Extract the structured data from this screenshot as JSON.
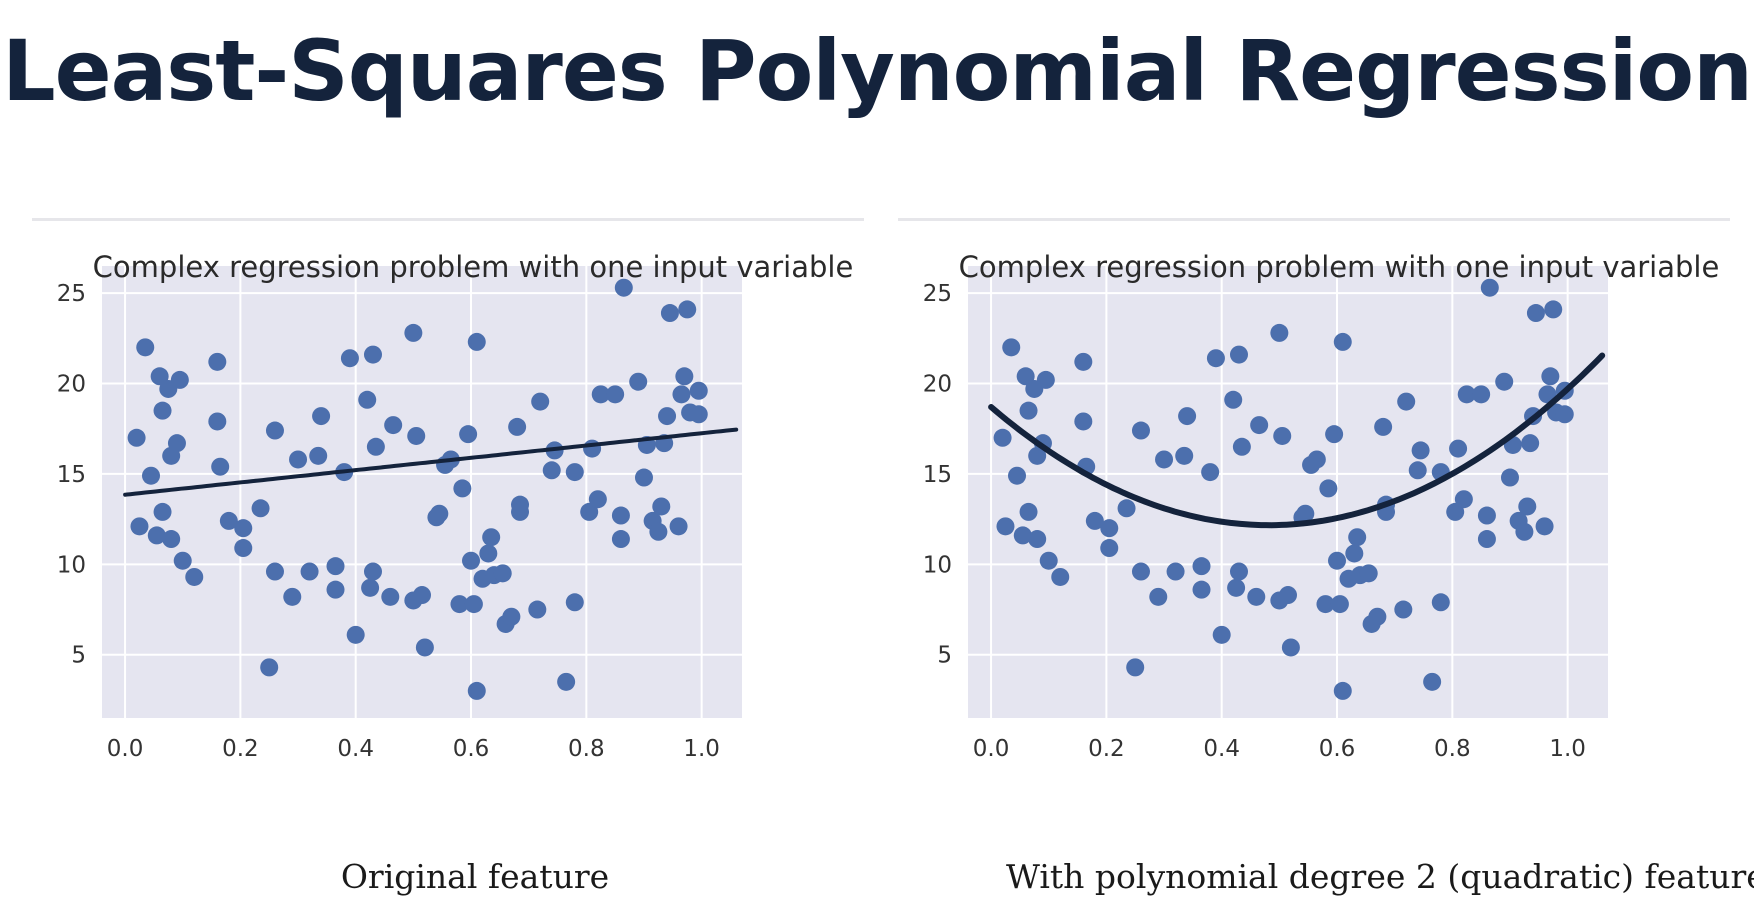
{
  "page": {
    "title": "Least-Squares Polynomial Regression"
  },
  "chart_data": [
    {
      "type": "scatter",
      "title": "Complex regression problem with one input variable",
      "xlabel": "Original feature",
      "ylabel": "",
      "xlim": [
        -0.04,
        1.07
      ],
      "ylim": [
        1.5,
        26.5
      ],
      "xticks": [
        0.0,
        0.2,
        0.4,
        0.6,
        0.8,
        1.0
      ],
      "xtick_labels": [
        "0.0",
        "0.2",
        "0.4",
        "0.6",
        "0.8",
        "1.0"
      ],
      "yticks": [
        5,
        10,
        15,
        20,
        25
      ],
      "ytick_labels": [
        "5",
        "10",
        "15",
        "20",
        "25"
      ],
      "grid": true,
      "background": "#e5e5f0",
      "point_color": "#4c6fad",
      "line_color": "#14233c",
      "fit": {
        "degree": 1,
        "coef": [
          13.85,
          3.4
        ]
      },
      "points": [
        [
          0.02,
          17
        ],
        [
          0.025,
          12.1
        ],
        [
          0.035,
          22
        ],
        [
          0.045,
          14.9
        ],
        [
          0.055,
          11.6
        ],
        [
          0.06,
          20.4
        ],
        [
          0.065,
          18.5
        ],
        [
          0.065,
          12.9
        ],
        [
          0.075,
          19.7
        ],
        [
          0.08,
          11.4
        ],
        [
          0.08,
          16
        ],
        [
          0.09,
          16.7
        ],
        [
          0.095,
          20.2
        ],
        [
          0.1,
          10.2
        ],
        [
          0.12,
          9.3
        ],
        [
          0.16,
          21.2
        ],
        [
          0.16,
          17.9
        ],
        [
          0.165,
          15.4
        ],
        [
          0.18,
          12.4
        ],
        [
          0.205,
          12
        ],
        [
          0.205,
          10.9
        ],
        [
          0.235,
          13.1
        ],
        [
          0.25,
          4.3
        ],
        [
          0.26,
          9.6
        ],
        [
          0.26,
          17.4
        ],
        [
          0.29,
          8.2
        ],
        [
          0.3,
          15.8
        ],
        [
          0.32,
          9.6
        ],
        [
          0.335,
          16
        ],
        [
          0.34,
          18.2
        ],
        [
          0.365,
          9.9
        ],
        [
          0.365,
          8.6
        ],
        [
          0.38,
          15.1
        ],
        [
          0.39,
          21.4
        ],
        [
          0.4,
          6.1
        ],
        [
          0.42,
          19.1
        ],
        [
          0.425,
          8.7
        ],
        [
          0.43,
          9.6
        ],
        [
          0.43,
          21.6
        ],
        [
          0.435,
          16.5
        ],
        [
          0.46,
          8.2
        ],
        [
          0.465,
          17.7
        ],
        [
          0.5,
          22.8
        ],
        [
          0.5,
          8
        ],
        [
          0.505,
          17.1
        ],
        [
          0.515,
          8.3
        ],
        [
          0.52,
          5.4
        ],
        [
          0.54,
          12.6
        ],
        [
          0.545,
          12.8
        ],
        [
          0.555,
          15.5
        ],
        [
          0.565,
          15.8
        ],
        [
          0.58,
          7.8
        ],
        [
          0.585,
          14.2
        ],
        [
          0.595,
          17.2
        ],
        [
          0.6,
          10.2
        ],
        [
          0.605,
          7.8
        ],
        [
          0.61,
          3
        ],
        [
          0.61,
          22.3
        ],
        [
          0.62,
          9.2
        ],
        [
          0.63,
          10.6
        ],
        [
          0.635,
          11.5
        ],
        [
          0.64,
          9.4
        ],
        [
          0.655,
          9.5
        ],
        [
          0.66,
          6.7
        ],
        [
          0.67,
          7.1
        ],
        [
          0.68,
          17.6
        ],
        [
          0.685,
          13.3
        ],
        [
          0.685,
          12.9
        ],
        [
          0.715,
          7.5
        ],
        [
          0.72,
          19
        ],
        [
          0.74,
          15.2
        ],
        [
          0.745,
          16.3
        ],
        [
          0.765,
          3.5
        ],
        [
          0.78,
          15.1
        ],
        [
          0.78,
          7.9
        ],
        [
          0.805,
          12.9
        ],
        [
          0.81,
          16.4
        ],
        [
          0.82,
          13.6
        ],
        [
          0.825,
          19.4
        ],
        [
          0.85,
          19.4
        ],
        [
          0.86,
          11.4
        ],
        [
          0.86,
          12.7
        ],
        [
          0.865,
          25.3
        ],
        [
          0.89,
          20.1
        ],
        [
          0.9,
          14.8
        ],
        [
          0.905,
          16.6
        ],
        [
          0.915,
          12.4
        ],
        [
          0.925,
          11.8
        ],
        [
          0.93,
          13.2
        ],
        [
          0.935,
          16.7
        ],
        [
          0.94,
          18.2
        ],
        [
          0.945,
          23.9
        ],
        [
          0.96,
          12.1
        ],
        [
          0.965,
          19.4
        ],
        [
          0.97,
          20.4
        ],
        [
          0.975,
          24.1
        ],
        [
          0.98,
          18.4
        ],
        [
          0.995,
          18.3
        ],
        [
          0.995,
          19.6
        ]
      ]
    },
    {
      "type": "scatter",
      "title": "Complex regression problem with one input variable",
      "xlabel": "With polynomial degree 2 (quadratic) feature",
      "ylabel": "",
      "xlim": [
        -0.04,
        1.07
      ],
      "ylim": [
        1.5,
        26.5
      ],
      "xticks": [
        0.0,
        0.2,
        0.4,
        0.6,
        0.8,
        1.0
      ],
      "xtick_labels": [
        "0.0",
        "0.2",
        "0.4",
        "0.6",
        "0.8",
        "1.0"
      ],
      "yticks": [
        5,
        10,
        15,
        20,
        25
      ],
      "ytick_labels": [
        "5",
        "10",
        "15",
        "20",
        "25"
      ],
      "grid": true,
      "background": "#e5e5f0",
      "point_color": "#4c6fad",
      "line_color": "#14233c",
      "fit": {
        "degree": 2,
        "coef": [
          18.7,
          -27.1,
          28.1
        ]
      },
      "points": [
        [
          0.02,
          17
        ],
        [
          0.025,
          12.1
        ],
        [
          0.035,
          22
        ],
        [
          0.045,
          14.9
        ],
        [
          0.055,
          11.6
        ],
        [
          0.06,
          20.4
        ],
        [
          0.065,
          18.5
        ],
        [
          0.065,
          12.9
        ],
        [
          0.075,
          19.7
        ],
        [
          0.08,
          11.4
        ],
        [
          0.08,
          16
        ],
        [
          0.09,
          16.7
        ],
        [
          0.095,
          20.2
        ],
        [
          0.1,
          10.2
        ],
        [
          0.12,
          9.3
        ],
        [
          0.16,
          21.2
        ],
        [
          0.16,
          17.9
        ],
        [
          0.165,
          15.4
        ],
        [
          0.18,
          12.4
        ],
        [
          0.205,
          12
        ],
        [
          0.205,
          10.9
        ],
        [
          0.235,
          13.1
        ],
        [
          0.25,
          4.3
        ],
        [
          0.26,
          9.6
        ],
        [
          0.26,
          17.4
        ],
        [
          0.29,
          8.2
        ],
        [
          0.3,
          15.8
        ],
        [
          0.32,
          9.6
        ],
        [
          0.335,
          16
        ],
        [
          0.34,
          18.2
        ],
        [
          0.365,
          9.9
        ],
        [
          0.365,
          8.6
        ],
        [
          0.38,
          15.1
        ],
        [
          0.39,
          21.4
        ],
        [
          0.4,
          6.1
        ],
        [
          0.42,
          19.1
        ],
        [
          0.425,
          8.7
        ],
        [
          0.43,
          9.6
        ],
        [
          0.43,
          21.6
        ],
        [
          0.435,
          16.5
        ],
        [
          0.46,
          8.2
        ],
        [
          0.465,
          17.7
        ],
        [
          0.5,
          22.8
        ],
        [
          0.5,
          8
        ],
        [
          0.505,
          17.1
        ],
        [
          0.515,
          8.3
        ],
        [
          0.52,
          5.4
        ],
        [
          0.54,
          12.6
        ],
        [
          0.545,
          12.8
        ],
        [
          0.555,
          15.5
        ],
        [
          0.565,
          15.8
        ],
        [
          0.58,
          7.8
        ],
        [
          0.585,
          14.2
        ],
        [
          0.595,
          17.2
        ],
        [
          0.6,
          10.2
        ],
        [
          0.605,
          7.8
        ],
        [
          0.61,
          3
        ],
        [
          0.61,
          22.3
        ],
        [
          0.62,
          9.2
        ],
        [
          0.63,
          10.6
        ],
        [
          0.635,
          11.5
        ],
        [
          0.64,
          9.4
        ],
        [
          0.655,
          9.5
        ],
        [
          0.66,
          6.7
        ],
        [
          0.67,
          7.1
        ],
        [
          0.68,
          17.6
        ],
        [
          0.685,
          13.3
        ],
        [
          0.685,
          12.9
        ],
        [
          0.715,
          7.5
        ],
        [
          0.72,
          19
        ],
        [
          0.74,
          15.2
        ],
        [
          0.745,
          16.3
        ],
        [
          0.765,
          3.5
        ],
        [
          0.78,
          15.1
        ],
        [
          0.78,
          7.9
        ],
        [
          0.805,
          12.9
        ],
        [
          0.81,
          16.4
        ],
        [
          0.82,
          13.6
        ],
        [
          0.825,
          19.4
        ],
        [
          0.85,
          19.4
        ],
        [
          0.86,
          11.4
        ],
        [
          0.86,
          12.7
        ],
        [
          0.865,
          25.3
        ],
        [
          0.89,
          20.1
        ],
        [
          0.9,
          14.8
        ],
        [
          0.905,
          16.6
        ],
        [
          0.915,
          12.4
        ],
        [
          0.925,
          11.8
        ],
        [
          0.93,
          13.2
        ],
        [
          0.935,
          16.7
        ],
        [
          0.94,
          18.2
        ],
        [
          0.945,
          23.9
        ],
        [
          0.96,
          12.1
        ],
        [
          0.965,
          19.4
        ],
        [
          0.97,
          20.4
        ],
        [
          0.975,
          24.1
        ],
        [
          0.98,
          18.4
        ],
        [
          0.995,
          18.3
        ],
        [
          0.995,
          19.6
        ]
      ]
    }
  ]
}
